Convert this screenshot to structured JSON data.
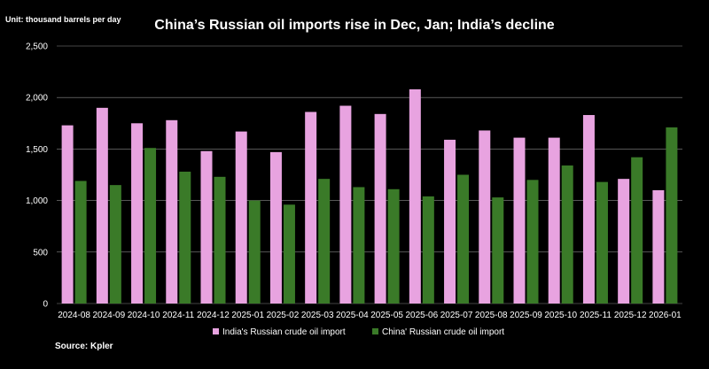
{
  "unit_note": "Unit: thousand barrels per day",
  "source_note": "Source: Kpler",
  "chart_data": {
    "type": "bar",
    "title": "China’s Russian oil imports rise in Dec, Jan; India’s decline",
    "xlabel": "",
    "ylabel": "",
    "ylim": [
      0,
      2500
    ],
    "yticks": [
      0,
      500,
      1000,
      1500,
      2000,
      2500
    ],
    "ytick_labels": [
      "0",
      "500",
      "1,000",
      "1,500",
      "2,000",
      "2,500"
    ],
    "grid": true,
    "legend_position": "bottom",
    "categories": [
      "2024-08",
      "2024-09",
      "2024-10",
      "2024-11",
      "2024-12",
      "2025-01",
      "2025-02",
      "2025-03",
      "2025-04",
      "2025-05",
      "2025-06",
      "2025-07",
      "2025-08",
      "2025-09",
      "2025-10",
      "2025-11",
      "2025-12",
      "2026-01"
    ],
    "series": [
      {
        "name": "India's Russian crude oil import",
        "color": "#e8a3e0",
        "values": [
          1730,
          1900,
          1750,
          1780,
          1480,
          1670,
          1470,
          1860,
          1920,
          1840,
          2080,
          1590,
          1680,
          1610,
          1610,
          1830,
          1210,
          1100
        ]
      },
      {
        "name": "China' Russian crude oil import",
        "color": "#3a7a28",
        "values": [
          1190,
          1150,
          1510,
          1280,
          1230,
          1000,
          960,
          1210,
          1130,
          1110,
          1040,
          1250,
          1030,
          1200,
          1340,
          1180,
          1420,
          1710
        ]
      }
    ]
  }
}
